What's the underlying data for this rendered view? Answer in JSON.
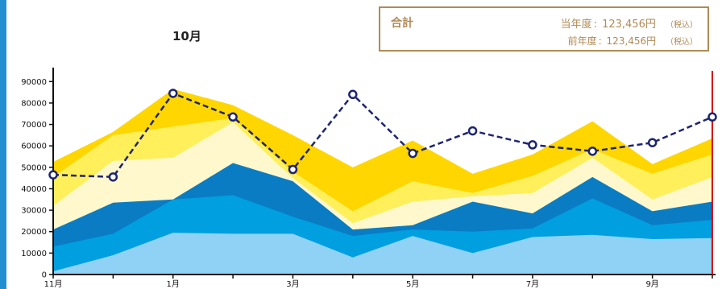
{
  "header": {
    "month_title": "10月"
  },
  "total": {
    "label": "合計",
    "current_label": "当年度",
    "current_value": "123,456円",
    "prev_label": "前年度",
    "prev_value": "123,456円",
    "tax_note": "（税込）"
  },
  "chart_data": {
    "type": "area",
    "title": "",
    "xlabel": "",
    "ylabel": "",
    "ylim": [
      0,
      95000
    ],
    "yticks": [
      0,
      10000,
      20000,
      30000,
      40000,
      50000,
      60000,
      70000,
      80000,
      90000
    ],
    "x_tick_labels": [
      "11月",
      "",
      "1月",
      "",
      "3月",
      "",
      "5月",
      "",
      "7月",
      "",
      "9月",
      ""
    ],
    "grid": false,
    "stacked_cumulative_tops": [
      {
        "color": "#90d2f5",
        "values": [
          1500,
          9000,
          19500,
          19000,
          19000,
          8000,
          18000,
          10000,
          17500,
          18500,
          16500,
          17000
        ]
      },
      {
        "color": "#009fe0",
        "values": [
          13000,
          19000,
          35000,
          37000,
          27000,
          18000,
          21000,
          20000,
          21500,
          35500,
          23000,
          25500
        ]
      },
      {
        "color": "#0a7cc4",
        "values": [
          21000,
          33500,
          35000,
          52000,
          43500,
          21000,
          23000,
          34000,
          28500,
          45500,
          29500,
          34000
        ]
      },
      {
        "color": "#fff8cc",
        "values": [
          32000,
          53000,
          54500,
          71000,
          45000,
          24000,
          34000,
          36500,
          38000,
          54500,
          35000,
          45500
        ]
      },
      {
        "color": "#ffef5a",
        "values": [
          45500,
          65000,
          69000,
          73000,
          48000,
          29500,
          43500,
          38000,
          46000,
          58500,
          47000,
          56000
        ]
      },
      {
        "color": "#ffd600",
        "values": [
          52500,
          66500,
          86500,
          79000,
          65000,
          50000,
          62500,
          47000,
          56000,
          71500,
          51500,
          63500
        ]
      }
    ],
    "line_series": {
      "color": "#1d2471",
      "style": "dashed",
      "values": [
        46500,
        45500,
        84500,
        73500,
        49000,
        84000,
        56500,
        67000,
        60500,
        57500,
        61500,
        73500
      ]
    },
    "current_marker_index": 11,
    "current_marker_color": "#d7001a"
  }
}
